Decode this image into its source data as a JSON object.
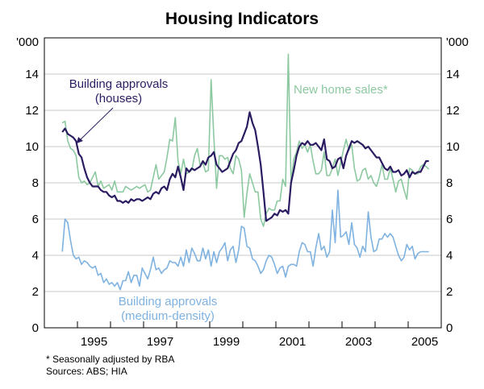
{
  "chart_data": {
    "type": "line",
    "title": "Housing Indicators",
    "ylabel_left": "'000",
    "ylabel_right": "'000",
    "xlabel": "",
    "ylim": [
      0,
      16
    ],
    "xlim": [
      1994.0,
      2006.0
    ],
    "yticks": [
      0,
      2,
      4,
      6,
      8,
      10,
      12,
      14
    ],
    "xtick_labels": [
      "1995",
      "1997",
      "1999",
      "2001",
      "2003",
      "2005"
    ],
    "xtick_label_years": [
      1995,
      1997,
      1999,
      2001,
      2003,
      2005
    ],
    "xtick_marks": [
      1995,
      1996,
      1997,
      1998,
      1999,
      2000,
      2001,
      2002,
      2003,
      2004,
      2005
    ],
    "grid": true,
    "frequency": "monthly",
    "start": "1994-07",
    "series": [
      {
        "name": "Building approvals (houses)",
        "label_lines": [
          "Building approvals",
          "(houses)"
        ],
        "color": "#2b1b61",
        "values": [
          10.8,
          11.0,
          10.7,
          10.6,
          10.5,
          10.3,
          9.6,
          9.4,
          8.8,
          8.3,
          8.0,
          7.8,
          7.8,
          7.8,
          7.6,
          7.5,
          7.5,
          7.3,
          7.2,
          7.3,
          7.0,
          7.0,
          6.9,
          7.0,
          6.9,
          7.1,
          7.0,
          7.1,
          7.1,
          7.0,
          7.1,
          7.2,
          7.1,
          7.4,
          7.5,
          7.4,
          7.7,
          7.8,
          7.6,
          8.2,
          8.5,
          8.3,
          8.9,
          8.3,
          7.6,
          8.8,
          8.6,
          8.8,
          8.7,
          8.8,
          8.9,
          9.2,
          9.0,
          9.4,
          9.5,
          9.7,
          9.0,
          8.8,
          8.6,
          8.7,
          8.8,
          9.2,
          9.6,
          9.8,
          10.2,
          10.3,
          10.7,
          11.1,
          11.9,
          11.3,
          10.9,
          10.0,
          9.0,
          7.5,
          5.9,
          6.0,
          6.1,
          6.3,
          6.2,
          6.5,
          6.4,
          6.5,
          6.3,
          8.0,
          8.7,
          9.5,
          10.0,
          10.2,
          10.1,
          10.3,
          10.1,
          10.1,
          10.2,
          10.0,
          9.8,
          10.4,
          9.3,
          9.2,
          8.8,
          8.9,
          9.3,
          9.4,
          8.8,
          9.5,
          9.9,
          10.3,
          10.2,
          10.3,
          10.2,
          10.1,
          9.9,
          10.0,
          9.8,
          9.6,
          9.4,
          9.4,
          9.1,
          8.8,
          8.7,
          8.9,
          8.6,
          8.6,
          8.7,
          8.4,
          8.5,
          8.7,
          8.3,
          8.6,
          8.5,
          8.6,
          8.6,
          8.9,
          9.2,
          9.2
        ]
      },
      {
        "name": "New home sales*",
        "label_lines": [
          "New home sales*"
        ],
        "color": "#8cc9a0",
        "values": [
          11.3,
          11.4,
          10.3,
          9.9,
          9.8,
          9.5,
          8.3,
          8.0,
          8.1,
          7.9,
          8.0,
          8.3,
          8.6,
          7.8,
          8.1,
          7.7,
          7.8,
          7.9,
          7.6,
          8.1,
          7.5,
          7.5,
          7.5,
          7.8,
          7.7,
          7.6,
          7.7,
          7.8,
          7.7,
          7.8,
          7.9,
          7.5,
          7.6,
          8.3,
          9.0,
          8.2,
          8.4,
          8.6,
          9.4,
          10.4,
          10.3,
          11.6,
          9.2,
          8.5,
          9.3,
          8.5,
          8.6,
          8.7,
          9.5,
          9.9,
          9.0,
          9.1,
          8.6,
          8.7,
          13.7,
          10.5,
          7.7,
          9.5,
          9.5,
          9.3,
          9.4,
          8.8,
          8.5,
          9.5,
          9.3,
          8.7,
          6.1,
          7.4,
          8.5,
          8.0,
          7.5,
          7.5,
          6.0,
          5.6,
          6.3,
          6.6,
          6.5,
          6.5,
          7.0,
          7.0,
          8.2,
          7.8,
          15.1,
          8.0,
          9.3,
          9.7,
          10.3,
          9.9,
          10.1,
          9.7,
          10.1,
          9.2,
          8.5,
          8.5,
          8.7,
          9.7,
          8.4,
          8.4,
          8.8,
          9.3,
          8.4,
          9.1,
          9.8,
          10.4,
          9.8,
          10.1,
          8.8,
          8.1,
          8.2,
          8.7,
          8.8,
          8.2,
          8.4,
          8.0,
          7.8,
          8.3,
          9.0,
          8.2,
          8.2,
          8.8,
          8.2,
          7.5,
          8.1,
          8.2,
          7.6,
          7.1,
          8.8,
          8.7,
          8.5,
          8.5,
          8.9,
          9.0,
          8.9,
          8.75
        ]
      },
      {
        "name": "Building approvals (medium-density)",
        "label_lines": [
          "Building approvals",
          "(medium-density)"
        ],
        "color": "#7fb2e0",
        "values": [
          4.2,
          6.0,
          5.8,
          4.8,
          4.0,
          3.8,
          3.9,
          3.5,
          3.7,
          3.6,
          3.4,
          3.3,
          3.4,
          2.9,
          3.0,
          2.5,
          2.7,
          2.4,
          2.5,
          2.3,
          2.5,
          2.1,
          2.6,
          2.6,
          3.1,
          2.5,
          2.9,
          2.9,
          2.3,
          3.3,
          3.0,
          2.7,
          3.2,
          3.9,
          3.2,
          3.3,
          3.0,
          3.2,
          3.3,
          3.7,
          3.6,
          3.6,
          3.4,
          3.9,
          3.4,
          4.3,
          3.6,
          4.4,
          4.1,
          3.7,
          3.7,
          4.4,
          3.8,
          4.3,
          3.4,
          4.2,
          3.6,
          4.2,
          4.4,
          4.7,
          3.7,
          4.3,
          4.5,
          3.6,
          4.3,
          5.6,
          5.5,
          4.5,
          4.4,
          3.8,
          3.7,
          3.4,
          3.0,
          3.2,
          3.7,
          4.0,
          3.9,
          3.5,
          3.0,
          3.3,
          3.4,
          2.8,
          3.4,
          3.5,
          3.5,
          3.4,
          4.2,
          4.7,
          4.6,
          4.2,
          4.2,
          3.4,
          4.4,
          5.2,
          4.3,
          4.5,
          3.9,
          4.2,
          6.5,
          4.7,
          7.6,
          5.0,
          5.1,
          5.3,
          4.6,
          5.8,
          4.6,
          4.4,
          3.9,
          4.5,
          4.2,
          6.4,
          5.0,
          4.2,
          4.3,
          4.9,
          4.9,
          5.2,
          5.0,
          5.2,
          5.0,
          4.5,
          4.0,
          3.7,
          3.9,
          4.6,
          4.3,
          4.5,
          3.8,
          4.1,
          4.2,
          4.2,
          4.2,
          4.2
        ]
      }
    ],
    "annotations": [
      "arrow from 'Building approvals (houses)' label to the houses series"
    ],
    "footnotes": [
      "*   Seasonally adjusted by RBA",
      "Sources: ABS; HIA"
    ]
  },
  "footer": {
    "note": "*   Seasonally adjusted by RBA",
    "sources": "Sources: ABS; HIA"
  }
}
